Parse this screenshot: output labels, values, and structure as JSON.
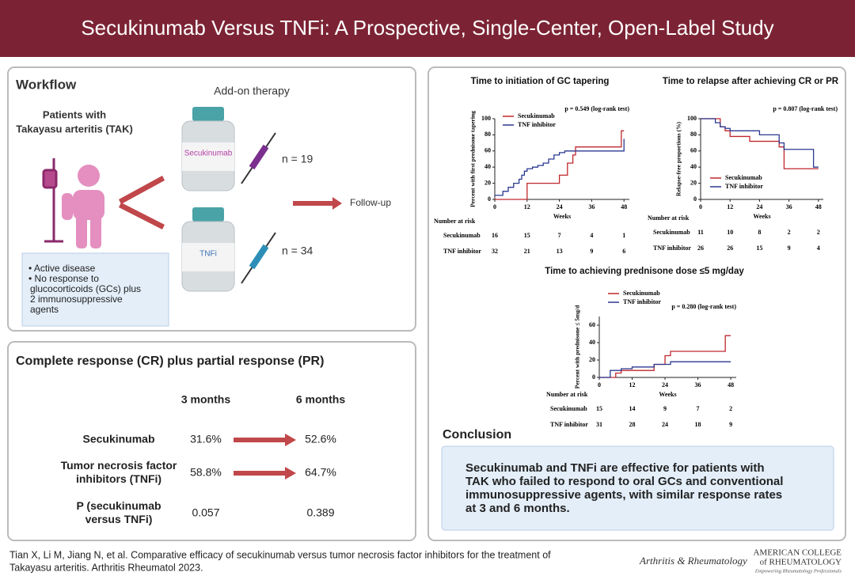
{
  "header": {
    "title": "Secukinumab Versus TNFi: A Prospective, Single-Center, Open-Label Study"
  },
  "workflow": {
    "title": "Workflow",
    "addon": "Add-on therapy",
    "patients": [
      "Patients with",
      "Takayasu arteritis (TAK)"
    ],
    "vial1": "Secukinumab",
    "n1": "n = 19",
    "vial2": "TNFi",
    "n2": "n = 34",
    "followup": "Follow-up",
    "criteria": [
      "• Active disease",
      "• No response to",
      "glucocorticoids (GCs) plus",
      "2 immunosuppressive",
      "agents"
    ]
  },
  "response": {
    "title": "Complete response (CR) plus partial response (PR)",
    "headers": [
      "3 months",
      "6 months"
    ],
    "rows": [
      {
        "label": [
          "Secukinumab"
        ],
        "v3": "31.6%",
        "v6": "52.6%"
      },
      {
        "label": [
          "Tumor necrosis factor",
          "inhibitors (TNFi)"
        ],
        "v3": "58.8%",
        "v6": "64.7%"
      },
      {
        "label": [
          "P (secukinumab",
          "versus TNFi)"
        ],
        "v3": "0.057",
        "v6": "0.389"
      }
    ]
  },
  "plots": [
    {
      "title": "Time to initiation of GC tapering",
      "p": "p = 0.549 (log-rank test)",
      "ylabel": "Percent with first prednisone tapering",
      "xlabel": "Weeks",
      "xlim": [
        0,
        50
      ],
      "ylim": [
        0,
        100
      ],
      "xticks": [
        0,
        12,
        24,
        36,
        48
      ],
      "yticks": [
        0,
        20,
        40,
        60,
        80,
        100
      ],
      "series": [
        {
          "name": "Secukinumab",
          "color": "#c0272d",
          "x": [
            0,
            11,
            12,
            20,
            24,
            27,
            29,
            30,
            46,
            47,
            48
          ],
          "y": [
            0,
            0,
            20,
            20,
            30,
            45,
            55,
            65,
            65,
            85,
            85
          ]
        },
        {
          "name": "TNF inhibitor",
          "color": "#2b3990",
          "x": [
            0,
            3,
            5,
            7,
            9,
            10,
            11,
            12,
            14,
            16,
            18,
            20,
            22,
            24,
            26,
            30,
            46,
            48
          ],
          "y": [
            5,
            10,
            15,
            20,
            25,
            30,
            35,
            38,
            40,
            42,
            45,
            50,
            55,
            58,
            60,
            60,
            60,
            75
          ]
        }
      ],
      "risk": {
        "label": "Number at risk",
        "rows": [
          {
            "name": "Secukinumab",
            "values": [
              16,
              15,
              7,
              4,
              1
            ]
          },
          {
            "name": "TNF inhibitor",
            "values": [
              32,
              21,
              13,
              9,
              6
            ]
          }
        ]
      }
    },
    {
      "title": "Time to relapse after achieving CR or PR",
      "p": "p = 0.807 (log-rank test)",
      "ylabel": "Relapse-free proportions (%)",
      "xlabel": "Weeks",
      "xlim": [
        0,
        50
      ],
      "ylim": [
        0,
        100
      ],
      "xticks": [
        0,
        12,
        24,
        36,
        48
      ],
      "yticks": [
        0,
        20,
        40,
        60,
        80,
        100
      ],
      "series": [
        {
          "name": "Secukinumab",
          "color": "#c0272d",
          "x": [
            0,
            5,
            8,
            10,
            12,
            20,
            24,
            32,
            34,
            48
          ],
          "y": [
            100,
            100,
            90,
            85,
            78,
            72,
            72,
            65,
            38,
            38
          ]
        },
        {
          "name": "TNF inhibitor",
          "color": "#2b3990",
          "x": [
            0,
            6,
            8,
            10,
            12,
            20,
            24,
            32,
            34,
            44,
            46,
            48
          ],
          "y": [
            100,
            95,
            90,
            88,
            85,
            85,
            80,
            70,
            62,
            62,
            40,
            40
          ]
        }
      ],
      "risk": {
        "label": "Number at risk",
        "rows": [
          {
            "name": "Secukinumab",
            "values": [
              11,
              10,
              8,
              2,
              2
            ]
          },
          {
            "name": "TNF inhibitor",
            "values": [
              26,
              26,
              15,
              9,
              4
            ]
          }
        ]
      }
    },
    {
      "title": "Time to achieving prednisone dose ≤5 mg/day",
      "p": "p = 0.280 (log-rank test)",
      "ylabel": "Percent with prednisone ≤ 5mg/d",
      "xlabel": "Weeks",
      "xlim": [
        0,
        50
      ],
      "ylim": [
        0,
        70
      ],
      "xticks": [
        0,
        12,
        24,
        36,
        48
      ],
      "yticks": [
        0,
        20,
        40,
        60
      ],
      "series": [
        {
          "name": "Secukinumab",
          "color": "#c0272d",
          "x": [
            0,
            6,
            8,
            12,
            20,
            24,
            26,
            44,
            46,
            48
          ],
          "y": [
            0,
            5,
            8,
            8,
            15,
            25,
            30,
            30,
            48,
            48
          ]
        },
        {
          "name": "TNF inhibitor",
          "color": "#2b3990",
          "x": [
            0,
            4,
            8,
            12,
            20,
            24,
            26,
            28,
            48
          ],
          "y": [
            0,
            8,
            10,
            12,
            15,
            15,
            18,
            18,
            18
          ]
        }
      ],
      "risk": {
        "label": "Number at risk",
        "rows": [
          {
            "name": "Secukinumab",
            "values": [
              15,
              14,
              9,
              7,
              2
            ]
          },
          {
            "name": "TNF inhibitor",
            "values": [
              31,
              28,
              24,
              18,
              9
            ]
          }
        ]
      }
    }
  ],
  "conclusion": {
    "title": "Conclusion",
    "text": [
      "Secukinumab and TNFi are effective for patients with",
      "TAK who failed to respond to oral GCs and conventional",
      "immunosuppressive agents, with similar response rates",
      "at 3 and 6 months."
    ]
  },
  "footer": {
    "citation": [
      "Tian X, Li M, Jiang N, et al. Comparative efficacy of secukinumab versus tumor necrosis factor inhibitors for the treatment of",
      "Takayasu arteritis. Arthritis Rheumatol 2023."
    ],
    "journal": "Arthritis & Rheumatology",
    "acr": [
      "AMERICAN COLLEGE",
      "of RHEUMATOLOGY"
    ],
    "tagline": "Empowering Rheumatology Professionals"
  }
}
